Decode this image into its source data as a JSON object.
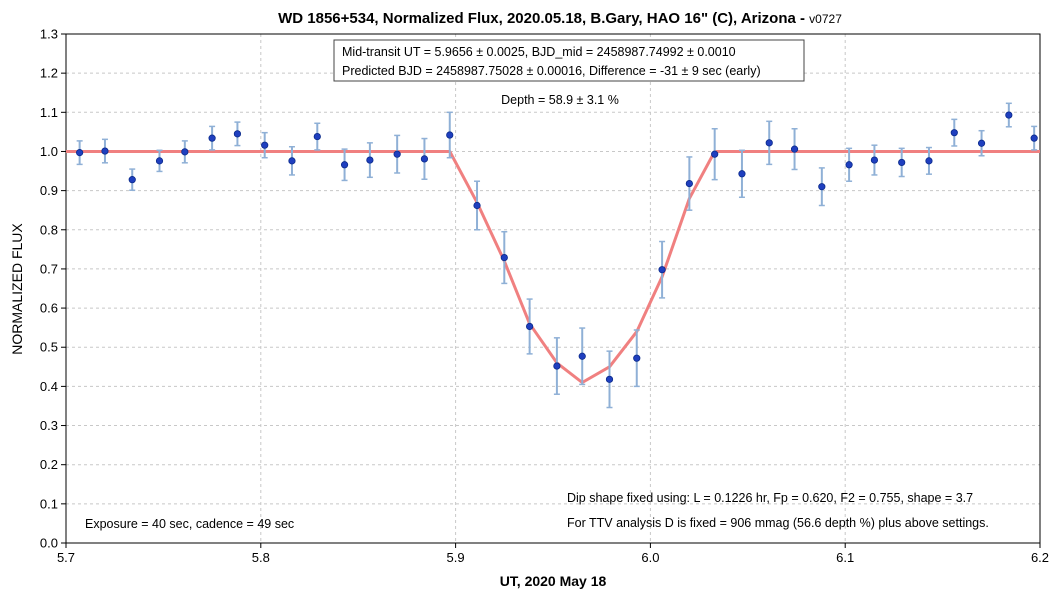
{
  "chart_data": {
    "type": "scatter",
    "title": "WD 1856+534, Normalized Flux, 2020.05.18, B.Gary, HAO 16\" (C), Arizona - ",
    "title_version": "v0727",
    "xlabel": "UT, 2020 May 18",
    "ylabel": "NORMALIZED FLUX",
    "xlim": [
      5.7,
      6.2
    ],
    "ylim": [
      0.0,
      1.3
    ],
    "x_ticks": [
      5.7,
      5.8,
      5.9,
      6.0,
      6.1,
      6.2
    ],
    "x_tick_labels": [
      "5.7",
      "5.8",
      "5.9",
      "6.0",
      "6.1",
      "6.2"
    ],
    "y_ticks": [
      0.0,
      0.1,
      0.2,
      0.3,
      0.4,
      0.5,
      0.6,
      0.7,
      0.8,
      0.9,
      1.0,
      1.1,
      1.2,
      1.3
    ],
    "y_tick_labels": [
      "0.0",
      "0.1",
      "0.2",
      "0.3",
      "0.4",
      "0.5",
      "0.6",
      "0.7",
      "0.8",
      "0.9",
      "1.0",
      "1.1",
      "1.2",
      "1.3"
    ],
    "grid": true,
    "series": [
      {
        "kind": "points_with_error",
        "color": "#1f3fbf",
        "error_color": "#8fb0d6",
        "x": [
          5.707,
          5.72,
          5.734,
          5.748,
          5.761,
          5.775,
          5.788,
          5.802,
          5.816,
          5.829,
          5.843,
          5.856,
          5.87,
          5.884,
          5.897,
          5.911,
          5.925,
          5.938,
          5.952,
          5.965,
          5.979,
          5.993,
          6.006,
          6.02,
          6.033,
          6.047,
          6.061,
          6.074,
          6.088,
          6.102,
          6.115,
          6.129,
          6.143,
          6.156,
          6.17,
          6.184,
          6.197
        ],
        "y": [
          0.997,
          1.001,
          0.928,
          0.976,
          0.999,
          1.034,
          1.045,
          1.016,
          0.976,
          1.038,
          0.966,
          0.978,
          0.993,
          0.981,
          1.042,
          0.862,
          0.729,
          0.553,
          0.452,
          0.477,
          0.418,
          0.472,
          0.698,
          0.918,
          0.993,
          0.943,
          1.022,
          1.006,
          0.91,
          0.966,
          0.978,
          0.972,
          0.976,
          1.048,
          1.021,
          1.093,
          1.034
        ],
        "err": [
          0.03,
          0.03,
          0.027,
          0.027,
          0.028,
          0.03,
          0.03,
          0.032,
          0.036,
          0.034,
          0.04,
          0.044,
          0.048,
          0.052,
          0.058,
          0.062,
          0.066,
          0.07,
          0.072,
          0.072,
          0.072,
          0.072,
          0.072,
          0.068,
          0.065,
          0.06,
          0.055,
          0.052,
          0.048,
          0.042,
          0.038,
          0.036,
          0.034,
          0.034,
          0.032,
          0.03,
          0.03
        ]
      },
      {
        "kind": "model_line",
        "color": "#f08080",
        "x": [
          5.7,
          5.897,
          5.911,
          5.925,
          5.938,
          5.952,
          5.965,
          5.979,
          5.993,
          6.006,
          6.02,
          6.033,
          6.2
        ],
        "y": [
          1.0,
          1.0,
          0.87,
          0.72,
          0.56,
          0.46,
          0.41,
          0.45,
          0.54,
          0.68,
          0.88,
          1.0,
          1.0
        ]
      }
    ],
    "annotations": {
      "box_line1": "Mid-transit UT = 5.9656 ± 0.0025, BJD_mid = 2458987.74992 ± 0.0010",
      "box_line2": "Predicted BJD = 2458987.75028 ± 0.00016, Difference = -31 ± 9 sec (early)",
      "depth": "Depth = 58.9 ± 3.1 %",
      "exposure": "Exposure = 40 sec, cadence = 49 sec",
      "dip_shape": "Dip shape fixed using:  L = 0.1226 hr, Fp = 0.620, F2 = 0.755, shape = 3.7",
      "ttv": "For TTV analysis D is fixed = 906 mmag (56.6 depth %) plus above settings."
    }
  }
}
